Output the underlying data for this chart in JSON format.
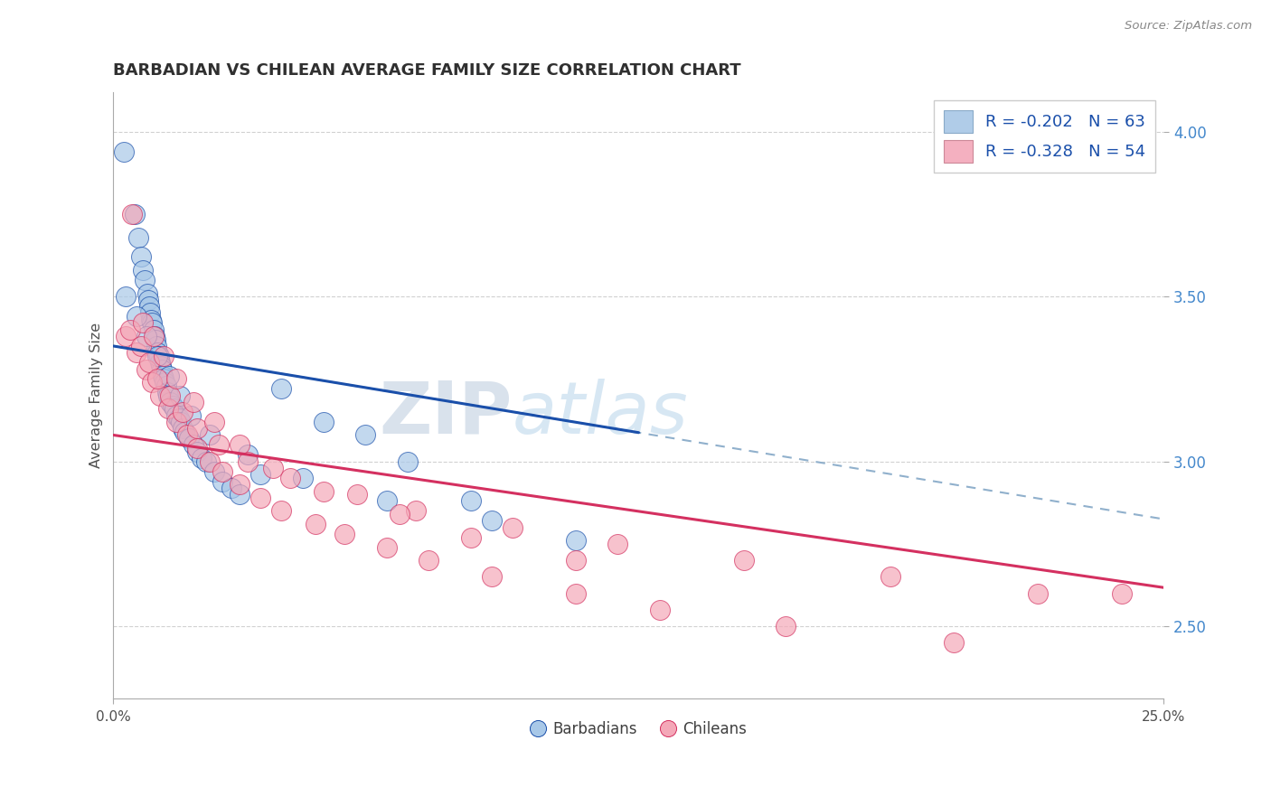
{
  "title": "BARBADIAN VS CHILEAN AVERAGE FAMILY SIZE CORRELATION CHART",
  "source": "Source: ZipAtlas.com",
  "ylabel": "Average Family Size",
  "x_min": 0.0,
  "x_max": 25.0,
  "y_min": 2.28,
  "y_max": 4.12,
  "y_ticks": [
    2.5,
    3.0,
    3.5,
    4.0
  ],
  "barbadian_R": -0.202,
  "barbadian_N": 63,
  "chilean_R": -0.328,
  "chilean_N": 54,
  "barbadian_color": "#a8c8e8",
  "chilean_color": "#f4a8b8",
  "trend_blue": "#1a4faa",
  "trend_pink": "#d43060",
  "trend_dash_color": "#90b0cc",
  "legend_box_blue": "#b0cce8",
  "legend_box_pink": "#f4b0c0",
  "watermark_ZIP": "ZIP",
  "watermark_atlas": "atlas",
  "watermark_color_ZIP": "#c0cfe0",
  "watermark_color_atlas": "#b8d0e8",
  "background_color": "#ffffff",
  "grid_color": "#cccccc",
  "title_color": "#303030",
  "axis_label_color": "#505050",
  "right_axis_color": "#4488cc",
  "legend_text_dark": "#303030",
  "legend_text_blue": "#1a4faa",
  "legend_text_N_color": "#4488cc",
  "source_color": "#888888",
  "bottom_legend_color": "#404040",
  "barb_x": [
    0.25,
    0.5,
    0.6,
    0.65,
    0.7,
    0.75,
    0.8,
    0.82,
    0.85,
    0.87,
    0.9,
    0.92,
    0.95,
    0.97,
    1.0,
    1.02,
    1.05,
    1.08,
    1.1,
    1.12,
    1.15,
    1.18,
    1.2,
    1.22,
    1.25,
    1.28,
    1.3,
    1.35,
    1.4,
    1.45,
    1.5,
    1.55,
    1.6,
    1.65,
    1.7,
    1.8,
    1.9,
    2.0,
    2.1,
    2.2,
    2.4,
    2.6,
    2.8,
    3.0,
    3.5,
    4.0,
    5.0,
    6.0,
    7.0,
    8.5,
    0.3,
    0.55,
    0.78,
    1.05,
    1.32,
    1.58,
    1.85,
    2.3,
    3.2,
    4.5,
    6.5,
    9.0,
    11.0
  ],
  "barb_y": [
    3.94,
    3.75,
    3.68,
    3.62,
    3.58,
    3.55,
    3.51,
    3.49,
    3.47,
    3.45,
    3.43,
    3.42,
    3.4,
    3.38,
    3.37,
    3.35,
    3.33,
    3.32,
    3.3,
    3.29,
    3.28,
    3.26,
    3.25,
    3.24,
    3.23,
    3.21,
    3.2,
    3.18,
    3.17,
    3.16,
    3.14,
    3.13,
    3.12,
    3.1,
    3.09,
    3.07,
    3.05,
    3.03,
    3.01,
    3.0,
    2.97,
    2.94,
    2.92,
    2.9,
    2.96,
    3.22,
    3.12,
    3.08,
    3.0,
    2.88,
    3.5,
    3.44,
    3.38,
    3.32,
    3.26,
    3.2,
    3.14,
    3.08,
    3.02,
    2.95,
    2.88,
    2.82,
    2.76
  ],
  "chil_x": [
    0.3,
    0.55,
    0.78,
    0.92,
    1.1,
    1.3,
    1.5,
    1.75,
    2.0,
    2.3,
    2.6,
    3.0,
    3.5,
    4.0,
    4.8,
    5.5,
    6.5,
    7.5,
    9.0,
    11.0,
    13.0,
    16.0,
    20.0,
    24.0,
    0.4,
    0.65,
    0.85,
    1.05,
    1.35,
    1.65,
    2.0,
    2.5,
    3.2,
    4.2,
    5.8,
    7.2,
    9.5,
    12.0,
    15.0,
    18.5,
    22.0,
    0.45,
    0.7,
    0.95,
    1.2,
    1.5,
    1.9,
    2.4,
    3.0,
    3.8,
    5.0,
    6.8,
    8.5,
    11.0
  ],
  "chil_y": [
    3.38,
    3.33,
    3.28,
    3.24,
    3.2,
    3.16,
    3.12,
    3.08,
    3.04,
    3.0,
    2.97,
    2.93,
    2.89,
    2.85,
    2.81,
    2.78,
    2.74,
    2.7,
    2.65,
    2.6,
    2.55,
    2.5,
    2.45,
    2.6,
    3.4,
    3.35,
    3.3,
    3.25,
    3.2,
    3.15,
    3.1,
    3.05,
    3.0,
    2.95,
    2.9,
    2.85,
    2.8,
    2.75,
    2.7,
    2.65,
    2.6,
    3.75,
    3.42,
    3.38,
    3.32,
    3.25,
    3.18,
    3.12,
    3.05,
    2.98,
    2.91,
    2.84,
    2.77,
    2.7
  ]
}
